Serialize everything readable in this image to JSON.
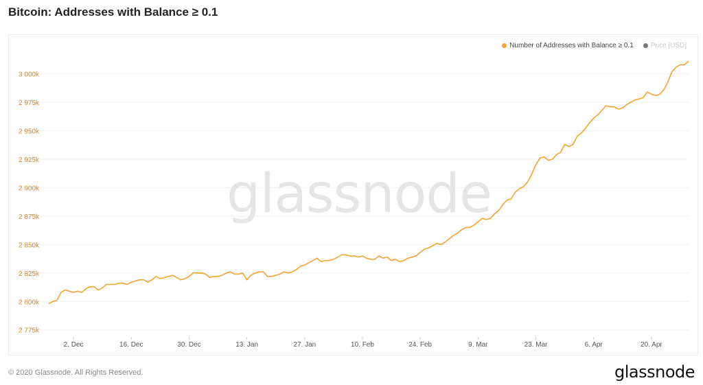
{
  "title": "Bitcoin: Addresses with Balance ≥ 0.1",
  "footer": {
    "copyright": "© 2020 Glassnode. All Rights Reserved.",
    "brand": "glassnode"
  },
  "watermark": "glassnode",
  "colors": {
    "series": "#F7A233",
    "price": "#777777",
    "axis_label": "#d18a2c",
    "x_label": "#555555",
    "grid": "#efefef"
  },
  "chart_data": {
    "type": "line",
    "title": "Bitcoin: Addresses with Balance ≥ 0.1",
    "xlabel": "",
    "ylabel": "",
    "legend_position": "top-right",
    "legend": [
      {
        "name": "Number of Addresses with Balance ≥ 0.1",
        "color": "#F7A233",
        "active": true
      },
      {
        "name": "Price [USD]",
        "color": "#777777",
        "active": false
      }
    ],
    "grid": true,
    "y_ticks": [
      2775000,
      2800000,
      2825000,
      2850000,
      2875000,
      2900000,
      2925000,
      2950000,
      2975000,
      3000000
    ],
    "y_tick_labels": [
      "2 775k",
      "2 800k",
      "2 825k",
      "2 850k",
      "2 875k",
      "2 900k",
      "2 925k",
      "2 950k",
      "2 975k",
      "3 000k"
    ],
    "ylim": [
      2770000,
      3010000
    ],
    "x_range": [
      "2019-11-26",
      "2020-04-29"
    ],
    "x_ticks": [
      "2019-12-02",
      "2019-12-16",
      "2019-12-30",
      "2020-01-13",
      "2020-01-27",
      "2020-02-10",
      "2020-02-24",
      "2020-03-09",
      "2020-03-23",
      "2020-04-06",
      "2020-04-20"
    ],
    "x_tick_labels": [
      "2. Dec",
      "16. Dec",
      "30. Dec",
      "13. Jan",
      "27. Jan",
      "10. Feb",
      "24. Feb",
      "9. Mar",
      "23. Mar",
      "6. Apr",
      "20. Apr"
    ],
    "series": [
      {
        "name": "Number of Addresses with Balance ≥ 0.1",
        "points": [
          [
            "2019-11-26",
            2798000
          ],
          [
            "2019-11-27",
            2800000
          ],
          [
            "2019-11-28",
            2801000
          ],
          [
            "2019-11-29",
            2808000
          ],
          [
            "2019-11-30",
            2810000
          ],
          [
            "2019-12-01",
            2809000
          ],
          [
            "2019-12-02",
            2808000
          ],
          [
            "2019-12-03",
            2809000
          ],
          [
            "2019-12-04",
            2808000
          ],
          [
            "2019-12-05",
            2811000
          ],
          [
            "2019-12-06",
            2813000
          ],
          [
            "2019-12-07",
            2813000
          ],
          [
            "2019-12-08",
            2810000
          ],
          [
            "2019-12-09",
            2812000
          ],
          [
            "2019-12-10",
            2815000
          ],
          [
            "2019-12-11",
            2815000
          ],
          [
            "2019-12-12",
            2815000
          ],
          [
            "2019-12-13",
            2816000
          ],
          [
            "2019-12-14",
            2816000
          ],
          [
            "2019-12-15",
            2815000
          ],
          [
            "2019-12-16",
            2817000
          ],
          [
            "2019-12-17",
            2818000
          ],
          [
            "2019-12-18",
            2819000
          ],
          [
            "2019-12-19",
            2819000
          ],
          [
            "2019-12-20",
            2817000
          ],
          [
            "2019-12-21",
            2819000
          ],
          [
            "2019-12-22",
            2822000
          ],
          [
            "2019-12-23",
            2820000
          ],
          [
            "2019-12-24",
            2821000
          ],
          [
            "2019-12-25",
            2822000
          ],
          [
            "2019-12-26",
            2823000
          ],
          [
            "2019-12-27",
            2821000
          ],
          [
            "2019-12-28",
            2819000
          ],
          [
            "2019-12-29",
            2820000
          ],
          [
            "2019-12-30",
            2822000
          ],
          [
            "2019-12-31",
            2825000
          ],
          [
            "2020-01-01",
            2825000
          ],
          [
            "2020-01-02",
            2825000
          ],
          [
            "2020-01-03",
            2824000
          ],
          [
            "2020-01-04",
            2821000
          ],
          [
            "2020-01-05",
            2822000
          ],
          [
            "2020-01-06",
            2822000
          ],
          [
            "2020-01-07",
            2823000
          ],
          [
            "2020-01-08",
            2825000
          ],
          [
            "2020-01-09",
            2826000
          ],
          [
            "2020-01-10",
            2824000
          ],
          [
            "2020-01-11",
            2824000
          ],
          [
            "2020-01-12",
            2825000
          ],
          [
            "2020-01-13",
            2819000
          ],
          [
            "2020-01-14",
            2823000
          ],
          [
            "2020-01-15",
            2825000
          ],
          [
            "2020-01-16",
            2826000
          ],
          [
            "2020-01-17",
            2826000
          ],
          [
            "2020-01-18",
            2822000
          ],
          [
            "2020-01-19",
            2822000
          ],
          [
            "2020-01-20",
            2823000
          ],
          [
            "2020-01-21",
            2824000
          ],
          [
            "2020-01-22",
            2826000
          ],
          [
            "2020-01-23",
            2825000
          ],
          [
            "2020-01-24",
            2826000
          ],
          [
            "2020-01-25",
            2828000
          ],
          [
            "2020-01-26",
            2831000
          ],
          [
            "2020-01-27",
            2832000
          ],
          [
            "2020-01-28",
            2834000
          ],
          [
            "2020-01-29",
            2836000
          ],
          [
            "2020-01-30",
            2838000
          ],
          [
            "2020-01-31",
            2835000
          ],
          [
            "2020-02-01",
            2836000
          ],
          [
            "2020-02-02",
            2836000
          ],
          [
            "2020-02-03",
            2837000
          ],
          [
            "2020-02-04",
            2839000
          ],
          [
            "2020-02-05",
            2841000
          ],
          [
            "2020-02-06",
            2841000
          ],
          [
            "2020-02-07",
            2840000
          ],
          [
            "2020-02-08",
            2840000
          ],
          [
            "2020-02-09",
            2839000
          ],
          [
            "2020-02-10",
            2840000
          ],
          [
            "2020-02-11",
            2838000
          ],
          [
            "2020-02-12",
            2837000
          ],
          [
            "2020-02-13",
            2837000
          ],
          [
            "2020-02-14",
            2840000
          ],
          [
            "2020-02-15",
            2838000
          ],
          [
            "2020-02-16",
            2839000
          ],
          [
            "2020-02-17",
            2836000
          ],
          [
            "2020-02-18",
            2837000
          ],
          [
            "2020-02-19",
            2835000
          ],
          [
            "2020-02-20",
            2836000
          ],
          [
            "2020-02-21",
            2838000
          ],
          [
            "2020-02-22",
            2839000
          ],
          [
            "2020-02-23",
            2840000
          ],
          [
            "2020-02-24",
            2843000
          ],
          [
            "2020-02-25",
            2846000
          ],
          [
            "2020-02-26",
            2847000
          ],
          [
            "2020-02-27",
            2849000
          ],
          [
            "2020-02-28",
            2851000
          ],
          [
            "2020-02-29",
            2850000
          ],
          [
            "2020-03-01",
            2852000
          ],
          [
            "2020-03-02",
            2855000
          ],
          [
            "2020-03-03",
            2858000
          ],
          [
            "2020-03-04",
            2860000
          ],
          [
            "2020-03-05",
            2863000
          ],
          [
            "2020-03-06",
            2865000
          ],
          [
            "2020-03-07",
            2865000
          ],
          [
            "2020-03-08",
            2867000
          ],
          [
            "2020-03-09",
            2870000
          ],
          [
            "2020-03-10",
            2873000
          ],
          [
            "2020-03-11",
            2872000
          ],
          [
            "2020-03-12",
            2873000
          ],
          [
            "2020-03-13",
            2877000
          ],
          [
            "2020-03-14",
            2880000
          ],
          [
            "2020-03-15",
            2885000
          ],
          [
            "2020-03-16",
            2889000
          ],
          [
            "2020-03-17",
            2890000
          ],
          [
            "2020-03-18",
            2896000
          ],
          [
            "2020-03-19",
            2899000
          ],
          [
            "2020-03-20",
            2901000
          ],
          [
            "2020-03-21",
            2905000
          ],
          [
            "2020-03-22",
            2912000
          ],
          [
            "2020-03-23",
            2920000
          ],
          [
            "2020-03-24",
            2926000
          ],
          [
            "2020-03-25",
            2927000
          ],
          [
            "2020-03-26",
            2924000
          ],
          [
            "2020-03-27",
            2925000
          ],
          [
            "2020-03-28",
            2929000
          ],
          [
            "2020-03-29",
            2931000
          ],
          [
            "2020-03-30",
            2938000
          ],
          [
            "2020-03-31",
            2936000
          ],
          [
            "2020-04-01",
            2938000
          ],
          [
            "2020-04-02",
            2945000
          ],
          [
            "2020-04-03",
            2948000
          ],
          [
            "2020-04-04",
            2952000
          ],
          [
            "2020-04-05",
            2957000
          ],
          [
            "2020-04-06",
            2961000
          ],
          [
            "2020-04-07",
            2964000
          ],
          [
            "2020-04-08",
            2968000
          ],
          [
            "2020-04-09",
            2972000
          ],
          [
            "2020-04-10",
            2971000
          ],
          [
            "2020-04-11",
            2971000
          ],
          [
            "2020-04-12",
            2969000
          ],
          [
            "2020-04-13",
            2970000
          ],
          [
            "2020-04-14",
            2973000
          ],
          [
            "2020-04-15",
            2975000
          ],
          [
            "2020-04-16",
            2977000
          ],
          [
            "2020-04-17",
            2978000
          ],
          [
            "2020-04-18",
            2979000
          ],
          [
            "2020-04-19",
            2984000
          ],
          [
            "2020-04-20",
            2982000
          ],
          [
            "2020-04-21",
            2981000
          ],
          [
            "2020-04-22",
            2982000
          ],
          [
            "2020-04-23",
            2986000
          ],
          [
            "2020-04-24",
            2993000
          ],
          [
            "2020-04-25",
            3002000
          ],
          [
            "2020-04-26",
            3006000
          ],
          [
            "2020-04-27",
            3008000
          ],
          [
            "2020-04-28",
            3008000
          ],
          [
            "2020-04-29",
            3011000
          ]
        ]
      }
    ]
  }
}
